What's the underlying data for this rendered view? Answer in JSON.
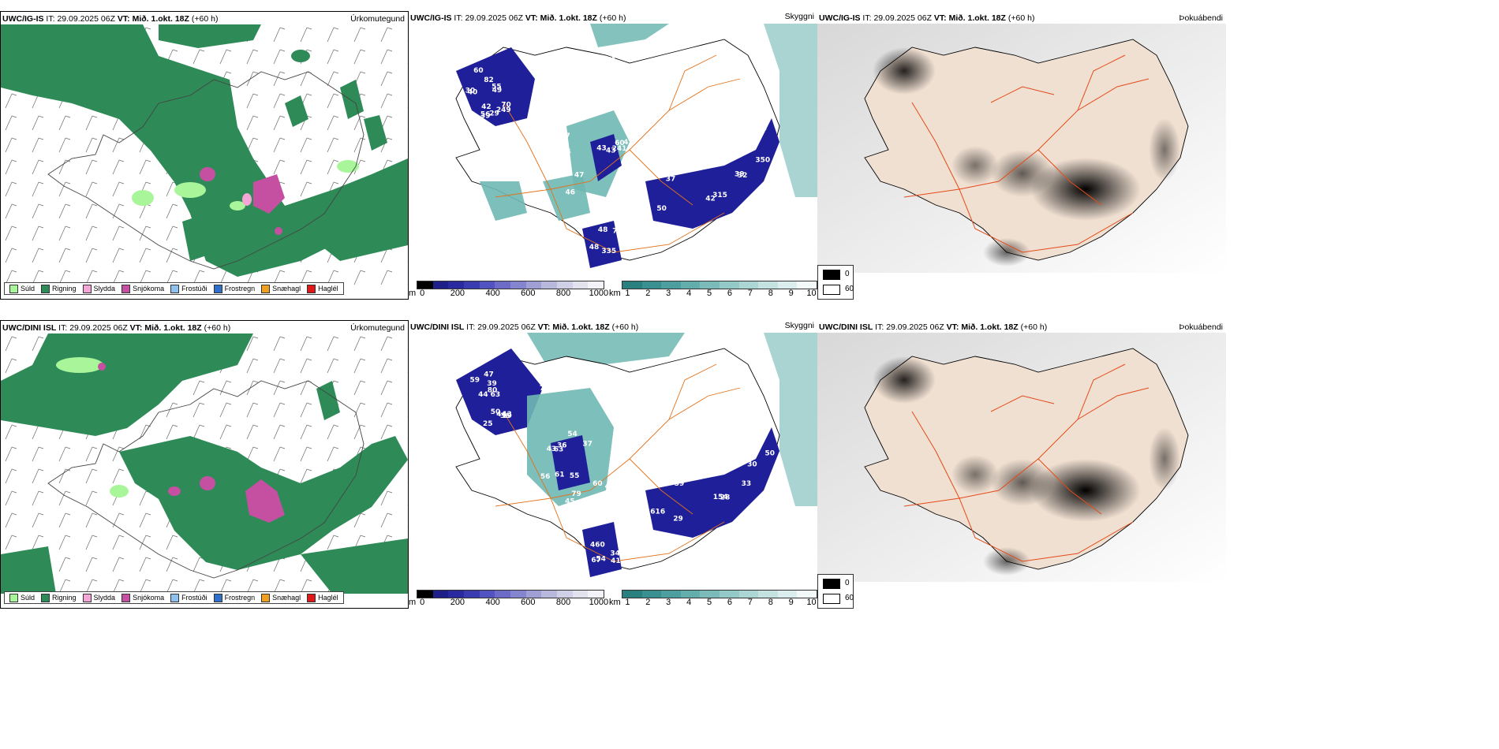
{
  "rows": [
    {
      "model": "UWC/IG-IS",
      "it_label": "IT:",
      "it_value": "29.09.2025 06Z",
      "vt_label": "VT:",
      "vt_value": "Mið. 1.okt. 18Z",
      "lead": "(+60 h)",
      "cloud_labels": [
        "49",
        "42",
        "51",
        "47",
        "60",
        "50",
        "50",
        "48",
        "22",
        "60",
        "56",
        "78",
        "75",
        "241",
        "315",
        "241",
        "46",
        "47",
        "82",
        "70",
        "79",
        "64",
        "43",
        "37",
        "35",
        "48",
        "46",
        "55",
        "249",
        "55",
        "50",
        "43",
        "42",
        "39",
        "70",
        "27",
        "30",
        "29",
        "61",
        "52",
        "41",
        "32",
        "350",
        "335",
        "61",
        "40",
        "39"
      ]
    },
    {
      "model": "UWC/DINI ISL",
      "it_label": "IT:",
      "it_value": "29.09.2025 06Z",
      "vt_label": "VT:",
      "vt_value": "Mið. 1.okt. 18Z",
      "lead": "(+60 h)",
      "cloud_labels": [
        "63",
        "43",
        "42",
        "54",
        "60",
        "59",
        "50",
        "67",
        "55",
        "59",
        "19",
        "10",
        "37",
        "427",
        "616",
        "82",
        "41",
        "56",
        "44",
        "36",
        "70",
        "43",
        "282",
        "154",
        "33",
        "54",
        "61",
        "47",
        "44",
        "40",
        "63",
        "24",
        "29",
        "30",
        "34",
        "45",
        "39",
        "50",
        "42",
        "36",
        "98",
        "28",
        "31",
        "460",
        "79",
        "80",
        "25"
      ]
    }
  ],
  "field_titles": {
    "precip": "Úrkomutegund",
    "cloud": "Skyggni",
    "dew": "Þokuábendi"
  },
  "precip_legend": [
    {
      "label": "Súld",
      "color": "#a9f59a"
    },
    {
      "label": "Rigning",
      "color": "#2e8b57"
    },
    {
      "label": "Slydda",
      "color": "#f4a6d7"
    },
    {
      "label": "Snjókoma",
      "color": "#c54fa0"
    },
    {
      "label": "Frostúði",
      "color": "#8ec1f0"
    },
    {
      "label": "Frostregn",
      "color": "#2f6ec9"
    },
    {
      "label": "Snæhagl",
      "color": "#f0a020"
    },
    {
      "label": "Haglél",
      "color": "#e01818"
    }
  ],
  "height_bar": {
    "unit": "m",
    "ticks": [
      "0",
      "200",
      "400",
      "600",
      "800",
      "1000"
    ],
    "colors": [
      "#000000",
      "#1f1f8a",
      "#2a2a9e",
      "#3b3bb0",
      "#5252c0",
      "#6c6cc8",
      "#8585cf",
      "#9f9fd6",
      "#b8b8dd",
      "#cfcfe6",
      "#e2e2ef",
      "#f2f2f8"
    ]
  },
  "km_bar": {
    "unit": "km",
    "ticks": [
      "1",
      "2",
      "3",
      "4",
      "5",
      "6",
      "7",
      "8",
      "9",
      "10"
    ],
    "colors": [
      "#2a7f7f",
      "#3a9090",
      "#4d9e9e",
      "#63aeac",
      "#7bbcba",
      "#93c9c7",
      "#abd6d4",
      "#c3e2e0",
      "#dbedec",
      "#f3f9f9"
    ]
  },
  "dew_legend": {
    "labels": [
      "0",
      "60"
    ],
    "colors": [
      "#000000",
      "#ffffff"
    ]
  },
  "colors": {
    "rain": "#2e8b57",
    "drizzle": "#a9f59a",
    "snow": "#c54fa0",
    "sleet": "#f4a6d7",
    "ocean_cloud": "#6fb8b2",
    "low_cloud": "#1f1f9a",
    "road": "#e2721b",
    "land_beige": "#f0e0d2",
    "dew_road": "#e64a19"
  }
}
